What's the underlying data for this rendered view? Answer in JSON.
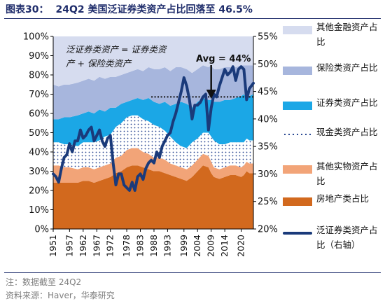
{
  "title": {
    "label": "图表30：",
    "text": "24Q2 美国泛证券类资产占比回落至 46.5%"
  },
  "notes": [
    "注：数据截至 24Q2",
    "资料来源：Haver，华泰研究"
  ],
  "annotation": {
    "bracket_line1": "泛证券类资产 = 证券类资",
    "bracket_line2": "产 + 保险类资产",
    "avg_label": "Avg = 44%",
    "avg_value": 44,
    "avg_from_year": 1987
  },
  "colors": {
    "other_financial": "#D6DCEF",
    "insurance": "#A7B6DD",
    "securities": "#1BA7E6",
    "cash": "#1F3E8C",
    "other_real": "#F2A478",
    "real_estate": "#D2691E",
    "broad_securities": "#1A3A7A",
    "title": "#1f2d6b"
  },
  "legend": [
    {
      "key": "other_financial",
      "label": "其他金融资产占比",
      "style": "fill"
    },
    {
      "key": "insurance",
      "label": "保险类资产占比",
      "style": "fill"
    },
    {
      "key": "securities",
      "label": "证券类资产占比",
      "style": "fill"
    },
    {
      "key": "cash",
      "label": "现金类资产占比",
      "style": "dots"
    },
    {
      "key": "other_real",
      "label": "其他实物资产占比",
      "style": "fill"
    },
    {
      "key": "real_estate",
      "label": "房地产类占比",
      "style": "fill"
    },
    {
      "key": "broad_securities",
      "label": "泛证券类资产占比（右轴）",
      "style": "line"
    }
  ],
  "chart_data": {
    "type": "area",
    "x_ticks": [
      "1951",
      "1957",
      "1962",
      "1967",
      "1972",
      "1978",
      "1983",
      "1988",
      "1993",
      "1999",
      "2004",
      "2009",
      "2014",
      "2020"
    ],
    "x_range": [
      1951,
      2024.5
    ],
    "y_left": {
      "min": 0,
      "max": 100,
      "ticks": [
        "0%",
        "10%",
        "20%",
        "30%",
        "40%",
        "50%",
        "60%",
        "70%",
        "80%",
        "90%",
        "100%"
      ]
    },
    "y_right": {
      "min": 20,
      "max": 55,
      "ticks": [
        "20%",
        "25%",
        "30%",
        "35%",
        "40%",
        "45%",
        "50%",
        "55%"
      ]
    },
    "years": [
      1951,
      1953,
      1955,
      1957,
      1960,
      1962,
      1964,
      1966,
      1968,
      1970,
      1972,
      1974,
      1976,
      1978,
      1980,
      1982,
      1984,
      1986,
      1988,
      1990,
      1992,
      1994,
      1996,
      1998,
      2000,
      2002,
      2004,
      2006,
      2008,
      2009,
      2010,
      2012,
      2014,
      2016,
      2018,
      2020,
      2021,
      2022,
      2023,
      2024.5
    ],
    "stacked_series": [
      {
        "name": "房地产类占比",
        "key": "real_estate",
        "values": [
          24,
          24,
          24,
          24,
          24,
          25,
          25,
          24,
          25,
          26,
          27,
          29,
          30,
          32,
          33,
          33,
          32,
          31,
          30,
          30,
          29,
          28,
          27,
          26,
          25,
          27,
          30,
          33,
          32,
          29,
          27,
          26,
          27,
          28,
          28,
          27,
          28,
          30,
          29,
          29
        ]
      },
      {
        "name": "其他实物资产占比",
        "key": "other_real",
        "values": [
          9,
          9,
          8,
          8,
          7,
          7,
          7,
          7,
          7,
          7,
          7,
          8,
          8,
          9,
          9,
          9,
          8,
          8,
          7,
          7,
          7,
          6,
          6,
          6,
          6,
          6,
          6,
          6,
          6,
          6,
          5,
          5,
          5,
          5,
          5,
          5,
          5,
          5,
          5,
          5
        ]
      },
      {
        "name": "现金类资产占比",
        "key": "cash",
        "values": [
          12,
          12,
          12,
          12,
          12,
          13,
          13,
          14,
          14,
          15,
          15,
          16,
          17,
          17,
          17,
          17,
          17,
          17,
          17,
          16,
          15,
          14,
          12,
          11,
          11,
          12,
          11,
          11,
          12,
          13,
          14,
          13,
          12,
          12,
          12,
          13,
          12,
          12,
          12,
          12
        ]
      },
      {
        "name": "证券类资产占比",
        "key": "securities",
        "values": [
          12,
          12,
          14,
          14,
          16,
          15,
          16,
          15,
          16,
          13,
          14,
          10,
          10,
          8,
          8,
          9,
          10,
          12,
          12,
          12,
          15,
          16,
          20,
          23,
          23,
          18,
          19,
          18,
          17,
          19,
          20,
          22,
          23,
          22,
          23,
          24,
          25,
          21,
          23,
          24
        ]
      },
      {
        "name": "保险类资产占比",
        "key": "insurance",
        "values": [
          18,
          17,
          17,
          17,
          17,
          17,
          17,
          17,
          17,
          17,
          16,
          16,
          15,
          15,
          15,
          15,
          15,
          16,
          17,
          18,
          18,
          18,
          19,
          18,
          18,
          18,
          17,
          17,
          17,
          18,
          17,
          17,
          17,
          17,
          16,
          16,
          15,
          17,
          16,
          15
        ]
      },
      {
        "name": "其他金融资产占比",
        "key": "other_financial",
        "values": [
          25,
          26,
          25,
          25,
          24,
          23,
          22,
          23,
          21,
          22,
          21,
          21,
          20,
          19,
          18,
          17,
          18,
          16,
          17,
          17,
          16,
          18,
          16,
          16,
          17,
          19,
          17,
          15,
          16,
          15,
          17,
          17,
          16,
          16,
          16,
          15,
          15,
          15,
          15,
          15
        ]
      }
    ],
    "line_series": {
      "name": "泛证券类资产占比（右轴）",
      "axis": "right",
      "points": [
        [
          1951,
          30
        ],
        [
          1952,
          29.5
        ],
        [
          1953,
          28.5
        ],
        [
          1954,
          31
        ],
        [
          1955,
          33
        ],
        [
          1956,
          33.5
        ],
        [
          1957,
          35.5
        ],
        [
          1958,
          34
        ],
        [
          1959,
          36
        ],
        [
          1960,
          36
        ],
        [
          1961,
          38
        ],
        [
          1962,
          36.5
        ],
        [
          1963,
          37
        ],
        [
          1964,
          38
        ],
        [
          1965,
          38.5
        ],
        [
          1966,
          36
        ],
        [
          1967,
          37
        ],
        [
          1968,
          38
        ],
        [
          1969,
          36
        ],
        [
          1970,
          35
        ],
        [
          1971,
          36.5
        ],
        [
          1972,
          37
        ],
        [
          1973,
          32
        ],
        [
          1974,
          28
        ],
        [
          1975,
          30
        ],
        [
          1976,
          30
        ],
        [
          1977,
          28
        ],
        [
          1978,
          27.5
        ],
        [
          1979,
          27
        ],
        [
          1980,
          28.5
        ],
        [
          1981,
          27
        ],
        [
          1982,
          29.5
        ],
        [
          1983,
          30
        ],
        [
          1984,
          29
        ],
        [
          1985,
          31
        ],
        [
          1986,
          32
        ],
        [
          1987,
          32.5
        ],
        [
          1988,
          32
        ],
        [
          1989,
          34
        ],
        [
          1990,
          33
        ],
        [
          1991,
          35
        ],
        [
          1992,
          36
        ],
        [
          1993,
          37
        ],
        [
          1994,
          37.5
        ],
        [
          1995,
          39.5
        ],
        [
          1996,
          41
        ],
        [
          1997,
          43
        ],
        [
          1998,
          45
        ],
        [
          1999,
          47.5
        ],
        [
          2000,
          46
        ],
        [
          2001,
          43.5
        ],
        [
          2002,
          40
        ],
        [
          2003,
          42.5
        ],
        [
          2004,
          42.5
        ],
        [
          2005,
          43
        ],
        [
          2006,
          44
        ],
        [
          2007,
          44.5
        ],
        [
          2008,
          38
        ],
        [
          2009,
          42
        ],
        [
          2010,
          44.5
        ],
        [
          2011,
          44
        ],
        [
          2012,
          46
        ],
        [
          2013,
          47.5
        ],
        [
          2014,
          49
        ],
        [
          2015,
          48
        ],
        [
          2016,
          48.5
        ],
        [
          2017,
          49.5
        ],
        [
          2018,
          47
        ],
        [
          2019,
          49
        ],
        [
          2020,
          49.5
        ],
        [
          2021,
          49
        ],
        [
          2022,
          43.5
        ],
        [
          2023,
          45.5
        ],
        [
          2024.5,
          46.5
        ]
      ]
    }
  }
}
